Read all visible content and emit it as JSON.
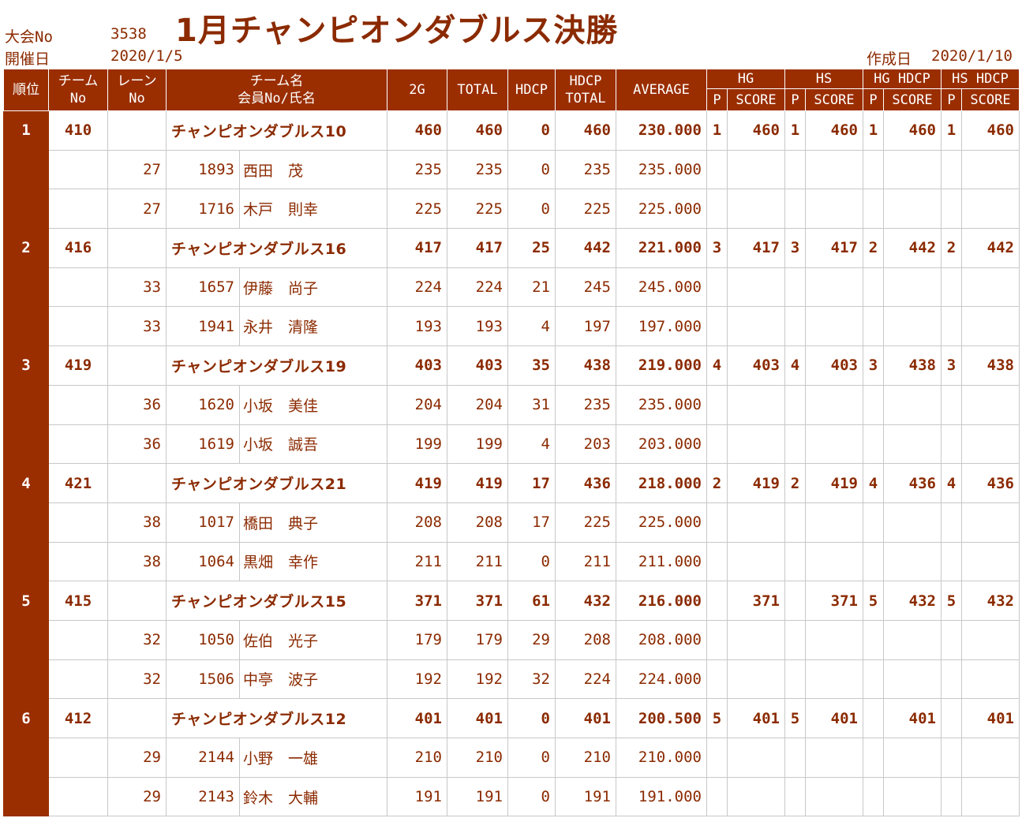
{
  "header": {
    "title": "1月チャンピオンダブルス決勝",
    "tournament_label": "大会No",
    "tournament_no": "3538",
    "date_label": "開催日",
    "date": "2020/1/5",
    "created_label": "作成日",
    "created_date": "2020/1/10"
  },
  "columns": {
    "rank": "順位",
    "team_no_1": "チーム",
    "team_no_2": "No",
    "lane_no_1": "レーン",
    "lane_no_2": "No",
    "team_name_1": "チーム名",
    "team_name_2": "会員No/氏名",
    "g2": "2G",
    "total": "TOTAL",
    "hdcp": "HDCP",
    "hdcp_total_1": "HDCP",
    "hdcp_total_2": "TOTAL",
    "average": "AVERAGE",
    "hg": "HG",
    "hs": "HS",
    "hg_hdcp": "HG HDCP",
    "hs_hdcp": "HS HDCP",
    "p": "P",
    "score": "SCORE"
  },
  "teams": [
    {
      "rank": "1",
      "team_no": "410",
      "name": "チャンピオンダブルス10",
      "g2": "460",
      "total": "460",
      "hdcp": "0",
      "hdcp_total": "460",
      "average": "230.000",
      "hg_p": "1",
      "hg_score": "460",
      "hs_p": "1",
      "hs_score": "460",
      "hgh_p": "1",
      "hgh_score": "460",
      "hsh_p": "1",
      "hsh_score": "460",
      "members": [
        {
          "lane": "27",
          "member_no": "1893",
          "name": "西田　茂",
          "g2": "235",
          "total": "235",
          "hdcp": "0",
          "hdcp_total": "235",
          "average": "235.000"
        },
        {
          "lane": "27",
          "member_no": "1716",
          "name": "木戸　則幸",
          "g2": "225",
          "total": "225",
          "hdcp": "0",
          "hdcp_total": "225",
          "average": "225.000"
        }
      ]
    },
    {
      "rank": "2",
      "team_no": "416",
      "name": "チャンピオンダブルス16",
      "g2": "417",
      "total": "417",
      "hdcp": "25",
      "hdcp_total": "442",
      "average": "221.000",
      "hg_p": "3",
      "hg_score": "417",
      "hs_p": "3",
      "hs_score": "417",
      "hgh_p": "2",
      "hgh_score": "442",
      "hsh_p": "2",
      "hsh_score": "442",
      "members": [
        {
          "lane": "33",
          "member_no": "1657",
          "name": "伊藤　尚子",
          "g2": "224",
          "total": "224",
          "hdcp": "21",
          "hdcp_total": "245",
          "average": "245.000"
        },
        {
          "lane": "33",
          "member_no": "1941",
          "name": "永井　清隆",
          "g2": "193",
          "total": "193",
          "hdcp": "4",
          "hdcp_total": "197",
          "average": "197.000"
        }
      ]
    },
    {
      "rank": "3",
      "team_no": "419",
      "name": "チャンピオンダブルス19",
      "g2": "403",
      "total": "403",
      "hdcp": "35",
      "hdcp_total": "438",
      "average": "219.000",
      "hg_p": "4",
      "hg_score": "403",
      "hs_p": "4",
      "hs_score": "403",
      "hgh_p": "3",
      "hgh_score": "438",
      "hsh_p": "3",
      "hsh_score": "438",
      "members": [
        {
          "lane": "36",
          "member_no": "1620",
          "name": "小坂　美佳",
          "g2": "204",
          "total": "204",
          "hdcp": "31",
          "hdcp_total": "235",
          "average": "235.000"
        },
        {
          "lane": "36",
          "member_no": "1619",
          "name": "小坂　誠吾",
          "g2": "199",
          "total": "199",
          "hdcp": "4",
          "hdcp_total": "203",
          "average": "203.000"
        }
      ]
    },
    {
      "rank": "4",
      "team_no": "421",
      "name": "チャンピオンダブルス21",
      "g2": "419",
      "total": "419",
      "hdcp": "17",
      "hdcp_total": "436",
      "average": "218.000",
      "hg_p": "2",
      "hg_score": "419",
      "hs_p": "2",
      "hs_score": "419",
      "hgh_p": "4",
      "hgh_score": "436",
      "hsh_p": "4",
      "hsh_score": "436",
      "members": [
        {
          "lane": "38",
          "member_no": "1017",
          "name": "橋田　典子",
          "g2": "208",
          "total": "208",
          "hdcp": "17",
          "hdcp_total": "225",
          "average": "225.000"
        },
        {
          "lane": "38",
          "member_no": "1064",
          "name": "黒畑　幸作",
          "g2": "211",
          "total": "211",
          "hdcp": "0",
          "hdcp_total": "211",
          "average": "211.000"
        }
      ]
    },
    {
      "rank": "5",
      "team_no": "415",
      "name": "チャンピオンダブルス15",
      "g2": "371",
      "total": "371",
      "hdcp": "61",
      "hdcp_total": "432",
      "average": "216.000",
      "hg_p": "",
      "hg_score": "371",
      "hs_p": "",
      "hs_score": "371",
      "hgh_p": "5",
      "hgh_score": "432",
      "hsh_p": "5",
      "hsh_score": "432",
      "members": [
        {
          "lane": "32",
          "member_no": "1050",
          "name": "佐伯　光子",
          "g2": "179",
          "total": "179",
          "hdcp": "29",
          "hdcp_total": "208",
          "average": "208.000"
        },
        {
          "lane": "32",
          "member_no": "1506",
          "name": "中亭　波子",
          "g2": "192",
          "total": "192",
          "hdcp": "32",
          "hdcp_total": "224",
          "average": "224.000"
        }
      ]
    },
    {
      "rank": "6",
      "team_no": "412",
      "name": "チャンピオンダブルス12",
      "g2": "401",
      "total": "401",
      "hdcp": "0",
      "hdcp_total": "401",
      "average": "200.500",
      "hg_p": "5",
      "hg_score": "401",
      "hs_p": "5",
      "hs_score": "401",
      "hgh_p": "",
      "hgh_score": "401",
      "hsh_p": "",
      "hsh_score": "401",
      "members": [
        {
          "lane": "29",
          "member_no": "2144",
          "name": "小野　一雄",
          "g2": "210",
          "total": "210",
          "hdcp": "0",
          "hdcp_total": "210",
          "average": "210.000"
        },
        {
          "lane": "29",
          "member_no": "2143",
          "name": "鈴木　大輔",
          "g2": "191",
          "total": "191",
          "hdcp": "0",
          "hdcp_total": "191",
          "average": "191.000"
        }
      ]
    }
  ]
}
